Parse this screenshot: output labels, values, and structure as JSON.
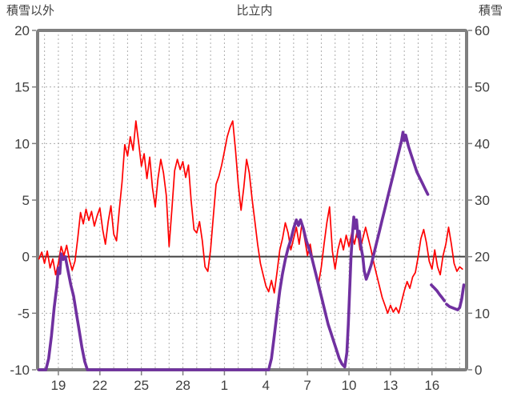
{
  "chart_data": {
    "type": "line",
    "title": "比立内",
    "left_axis": {
      "title": "積雪以外",
      "min": -10,
      "max": 20,
      "tick_step": 5,
      "ticks": [
        20,
        15,
        10,
        5,
        0,
        -5,
        -10
      ]
    },
    "right_axis": {
      "title": "積雪",
      "min": 0,
      "max": 60,
      "tick_step": 10,
      "ticks": [
        60,
        50,
        40,
        30,
        20,
        10,
        0
      ]
    },
    "x_axis": {
      "domain_days": [
        17.5,
        48.5
      ],
      "tick_labels": [
        "19",
        "22",
        "25",
        "28",
        "1",
        "4",
        "7",
        "10",
        "13",
        "16"
      ],
      "tick_positions": [
        19,
        22,
        25,
        28,
        31,
        34,
        37,
        40,
        43,
        46
      ],
      "gridline_every_days": 1
    },
    "zero_line_left_value": 0,
    "grid": true,
    "legend": "none",
    "colors": {
      "temperature": "#FF0000",
      "snow": "#7030A0",
      "grid": "#ADADAD",
      "frame": "#7F7F7F",
      "zero_line": "#404040",
      "text": "#404040"
    },
    "series": [
      {
        "name": "積雪以外",
        "axis": "left",
        "color_key": "temperature",
        "stroke_width": 1.7,
        "segments": [
          [
            [
              17.6,
              -0.2
            ],
            [
              17.8,
              0.4
            ],
            [
              18.0,
              -0.6
            ],
            [
              18.2,
              0.5
            ],
            [
              18.4,
              -1.0
            ],
            [
              18.6,
              -0.2
            ],
            [
              18.8,
              -1.6
            ],
            [
              19.0,
              -0.6
            ],
            [
              19.2,
              0.9
            ],
            [
              19.4,
              0.1
            ],
            [
              19.6,
              1.0
            ],
            [
              19.8,
              -0.3
            ],
            [
              20.0,
              -1.2
            ],
            [
              20.2,
              -0.4
            ],
            [
              20.4,
              1.6
            ],
            [
              20.6,
              3.9
            ],
            [
              20.8,
              2.9
            ],
            [
              21.0,
              4.2
            ],
            [
              21.2,
              3.2
            ],
            [
              21.4,
              4.0
            ],
            [
              21.6,
              2.7
            ],
            [
              21.8,
              3.6
            ],
            [
              22.0,
              4.3
            ],
            [
              22.2,
              2.4
            ],
            [
              22.4,
              1.1
            ],
            [
              22.6,
              3.1
            ],
            [
              22.8,
              4.5
            ],
            [
              23.0,
              2.0
            ],
            [
              23.2,
              1.4
            ],
            [
              23.4,
              4.1
            ],
            [
              23.6,
              6.6
            ],
            [
              23.8,
              9.9
            ],
            [
              24.0,
              8.9
            ],
            [
              24.2,
              10.6
            ],
            [
              24.4,
              9.4
            ],
            [
              24.6,
              12.0
            ],
            [
              24.8,
              10.1
            ],
            [
              25.0,
              8.0
            ],
            [
              25.2,
              9.1
            ],
            [
              25.4,
              6.9
            ],
            [
              25.6,
              8.8
            ],
            [
              25.8,
              6.1
            ],
            [
              26.0,
              4.4
            ],
            [
              26.2,
              6.9
            ],
            [
              26.4,
              8.6
            ],
            [
              26.6,
              7.4
            ],
            [
              26.8,
              5.4
            ],
            [
              27.0,
              0.9
            ],
            [
              27.2,
              4.1
            ],
            [
              27.4,
              7.6
            ],
            [
              27.6,
              8.6
            ],
            [
              27.8,
              7.7
            ],
            [
              28.0,
              8.4
            ],
            [
              28.2,
              7.0
            ],
            [
              28.4,
              8.1
            ],
            [
              28.6,
              4.9
            ],
            [
              28.8,
              2.4
            ],
            [
              29.0,
              2.1
            ],
            [
              29.2,
              3.1
            ],
            [
              29.4,
              1.4
            ],
            [
              29.6,
              -0.9
            ],
            [
              29.8,
              -1.3
            ],
            [
              30.0,
              0.6
            ],
            [
              30.2,
              3.6
            ],
            [
              30.4,
              6.4
            ],
            [
              30.6,
              7.1
            ],
            [
              30.8,
              8.1
            ],
            [
              31.0,
              9.3
            ],
            [
              31.2,
              10.6
            ],
            [
              31.4,
              11.4
            ],
            [
              31.6,
              12.0
            ],
            [
              31.8,
              9.4
            ],
            [
              32.0,
              6.4
            ],
            [
              32.2,
              4.1
            ],
            [
              32.4,
              6.1
            ],
            [
              32.6,
              8.6
            ],
            [
              32.8,
              7.4
            ],
            [
              33.0,
              5.1
            ],
            [
              33.2,
              3.1
            ],
            [
              33.4,
              1.1
            ],
            [
              33.6,
              -0.6
            ],
            [
              33.8,
              -1.6
            ],
            [
              34.0,
              -2.6
            ],
            [
              34.2,
              -3.1
            ],
            [
              34.4,
              -2.1
            ],
            [
              34.6,
              -3.2
            ],
            [
              34.8,
              -1.4
            ],
            [
              35.0,
              0.6
            ],
            [
              35.2,
              1.6
            ],
            [
              35.4,
              3.0
            ],
            [
              35.6,
              2.1
            ],
            [
              35.8,
              0.6
            ],
            [
              36.0,
              1.6
            ],
            [
              36.2,
              2.6
            ],
            [
              36.4,
              1.1
            ],
            [
              36.6,
              2.9
            ],
            [
              36.8,
              1.6
            ],
            [
              37.0,
              0.1
            ],
            [
              37.2,
              1.1
            ],
            [
              37.4,
              -0.4
            ],
            [
              37.6,
              -1.4
            ],
            [
              37.8,
              -2.4
            ],
            [
              38.0,
              -0.9
            ],
            [
              38.2,
              1.1
            ],
            [
              38.4,
              3.0
            ],
            [
              38.6,
              4.4
            ],
            [
              38.8,
              0.5
            ],
            [
              39.0,
              -1.1
            ],
            [
              39.2,
              0.6
            ],
            [
              39.4,
              1.6
            ],
            [
              39.6,
              0.6
            ],
            [
              39.8,
              1.9
            ],
            [
              40.0,
              0.9
            ],
            [
              40.2,
              2.1
            ],
            [
              40.4,
              1.1
            ],
            [
              40.6,
              2.3
            ],
            [
              40.8,
              0.6
            ],
            [
              41.0,
              1.6
            ],
            [
              41.2,
              2.6
            ],
            [
              41.4,
              1.6
            ],
            [
              41.6,
              0.6
            ],
            [
              41.8,
              -0.6
            ],
            [
              42.0,
              -1.6
            ],
            [
              42.2,
              -2.6
            ],
            [
              42.4,
              -3.6
            ],
            [
              42.6,
              -4.3
            ],
            [
              42.8,
              -5.0
            ],
            [
              43.0,
              -4.3
            ],
            [
              43.2,
              -4.9
            ],
            [
              43.4,
              -4.5
            ],
            [
              43.6,
              -5.0
            ],
            [
              43.8,
              -4.0
            ],
            [
              44.0,
              -3.0
            ],
            [
              44.2,
              -2.2
            ],
            [
              44.4,
              -2.8
            ],
            [
              44.6,
              -1.8
            ],
            [
              44.8,
              -1.4
            ],
            [
              45.0,
              0.0
            ],
            [
              45.2,
              1.6
            ],
            [
              45.4,
              2.4
            ],
            [
              45.6,
              1.2
            ],
            [
              45.8,
              -0.4
            ],
            [
              46.0,
              -1.1
            ],
            [
              46.2,
              0.6
            ],
            [
              46.4,
              -0.9
            ],
            [
              46.6,
              -1.6
            ],
            [
              46.8,
              0.1
            ],
            [
              47.0,
              1.1
            ],
            [
              47.2,
              2.6
            ],
            [
              47.4,
              1.1
            ],
            [
              47.6,
              -0.6
            ],
            [
              47.8,
              -1.3
            ],
            [
              48.0,
              -0.9
            ],
            [
              48.2,
              -1.1
            ]
          ]
        ]
      },
      {
        "name": "積雪",
        "axis": "right",
        "color_key": "snow",
        "stroke_width": 3.6,
        "segments": [
          [
            [
              17.6,
              0
            ],
            [
              18.1,
              0
            ],
            [
              18.3,
              2
            ],
            [
              18.5,
              6
            ],
            [
              18.7,
              11
            ],
            [
              18.9,
              15
            ],
            [
              19.0,
              18
            ],
            [
              19.1,
              17
            ],
            [
              19.2,
              20.5
            ],
            [
              19.35,
              19.5
            ],
            [
              19.5,
              20
            ],
            [
              19.7,
              17.5
            ],
            [
              19.9,
              15
            ],
            [
              20.1,
              13
            ],
            [
              20.3,
              10
            ],
            [
              20.5,
              7
            ],
            [
              20.7,
              4
            ],
            [
              20.9,
              1.5
            ],
            [
              21.1,
              0
            ],
            [
              34.2,
              0
            ],
            [
              34.4,
              2
            ],
            [
              34.6,
              6
            ],
            [
              34.8,
              10
            ],
            [
              35.0,
              14
            ],
            [
              35.2,
              17
            ],
            [
              35.4,
              19.5
            ],
            [
              35.6,
              21.5
            ],
            [
              35.8,
              23
            ],
            [
              36.0,
              25
            ],
            [
              36.2,
              26.5
            ],
            [
              36.35,
              25.5
            ],
            [
              36.5,
              26.5
            ],
            [
              36.7,
              25
            ],
            [
              36.9,
              23
            ],
            [
              37.1,
              21.5
            ],
            [
              37.3,
              20
            ],
            [
              37.5,
              18
            ],
            [
              37.7,
              16
            ],
            [
              37.9,
              14
            ],
            [
              38.1,
              12
            ],
            [
              38.3,
              10
            ],
            [
              38.5,
              8
            ],
            [
              38.7,
              6.5
            ],
            [
              38.9,
              5
            ],
            [
              39.1,
              3.5
            ],
            [
              39.3,
              2
            ],
            [
              39.5,
              1
            ],
            [
              39.7,
              0.5
            ],
            [
              39.85,
              3
            ],
            [
              39.95,
              8
            ],
            [
              40.05,
              14
            ],
            [
              40.15,
              20
            ],
            [
              40.25,
              24
            ],
            [
              40.35,
              27
            ],
            [
              40.45,
              25
            ],
            [
              40.55,
              26.5
            ],
            [
              40.65,
              23.5
            ],
            [
              40.75,
              24.5
            ],
            [
              40.85,
              22
            ],
            [
              41.0,
              20
            ],
            [
              41.1,
              17.5
            ],
            [
              41.25,
              16
            ],
            [
              41.4,
              17
            ],
            [
              41.6,
              18.5
            ],
            [
              41.8,
              20.5
            ],
            [
              42.0,
              22.5
            ],
            [
              42.2,
              24.5
            ],
            [
              42.4,
              26.5
            ],
            [
              42.6,
              28.5
            ],
            [
              42.8,
              30.5
            ],
            [
              43.0,
              32.5
            ],
            [
              43.2,
              34.5
            ],
            [
              43.4,
              36.5
            ],
            [
              43.6,
              38.5
            ],
            [
              43.8,
              40.5
            ],
            [
              43.9,
              42
            ],
            [
              44.0,
              40.5
            ],
            [
              44.1,
              41.5
            ],
            [
              44.3,
              39.5
            ],
            [
              44.5,
              38
            ],
            [
              44.7,
              36.5
            ],
            [
              44.9,
              35
            ],
            [
              45.1,
              34
            ],
            [
              45.3,
              33
            ],
            [
              45.5,
              32
            ],
            [
              45.7,
              31
            ]
          ],
          [
            [
              45.95,
              15
            ],
            [
              46.15,
              14.5
            ],
            [
              46.35,
              14
            ],
            [
              46.55,
              13.3
            ],
            [
              46.75,
              12.7
            ],
            [
              46.9,
              12.2
            ]
          ],
          [
            [
              47.05,
              11.6
            ],
            [
              47.25,
              11.2
            ],
            [
              47.45,
              11
            ],
            [
              47.65,
              10.8
            ],
            [
              47.85,
              10.6
            ],
            [
              48.0,
              11
            ],
            [
              48.15,
              12.5
            ],
            [
              48.3,
              15
            ]
          ]
        ]
      }
    ]
  }
}
